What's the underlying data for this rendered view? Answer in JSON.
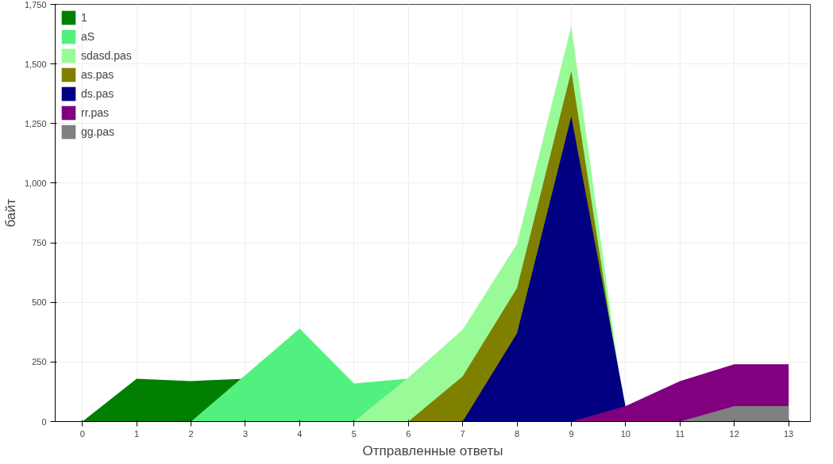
{
  "chart_data": {
    "type": "area",
    "xlabel": "Отправленные ответы",
    "ylabel": "байт",
    "xlim": [
      -0.5,
      13.4
    ],
    "xticks": [
      0,
      1,
      2,
      3,
      4,
      5,
      6,
      7,
      8,
      9,
      10,
      11,
      12,
      13
    ],
    "ylim": [
      0,
      1750
    ],
    "yticks": [
      0,
      250,
      500,
      750,
      {
        "value": 1000,
        "label": "1,000"
      },
      {
        "value": 1250,
        "label": "1,250"
      },
      {
        "value": 1500,
        "label": "1,500"
      },
      {
        "value": 1750,
        "label": "1,750"
      }
    ],
    "grid": true,
    "legend": "top left",
    "series": [
      {
        "name": "1",
        "color": "#007f00",
        "x": [
          0,
          1,
          2,
          3,
          4
        ],
        "values": [
          0,
          180,
          170,
          180,
          0
        ]
      },
      {
        "name": "aS",
        "color": "#52f07e",
        "x": [
          2,
          4,
          5,
          6,
          7
        ],
        "values": [
          0,
          390,
          160,
          180,
          0
        ]
      },
      {
        "name": "sdasd.pas",
        "color": "#98fb98",
        "x": [
          5,
          6,
          7,
          8,
          9,
          10
        ],
        "values": [
          0,
          185,
          385,
          745,
          1660,
          0
        ]
      },
      {
        "name": "as.pas",
        "color": "#808000",
        "x": [
          6,
          7,
          8,
          9,
          10
        ],
        "values": [
          0,
          190,
          560,
          1470,
          0
        ]
      },
      {
        "name": "ds.pas",
        "color": "#000080",
        "x": [
          7,
          8,
          9,
          10,
          11
        ],
        "values": [
          0,
          370,
          1280,
          60,
          0
        ]
      },
      {
        "name": "rr.pas",
        "color": "#800080",
        "x": [
          9,
          10,
          11,
          12,
          13
        ],
        "values": [
          0,
          65,
          170,
          240,
          240
        ]
      },
      {
        "name": "gg.pas",
        "color": "#808080",
        "x": [
          11,
          12,
          13
        ],
        "values": [
          0,
          65,
          65
        ]
      }
    ]
  }
}
